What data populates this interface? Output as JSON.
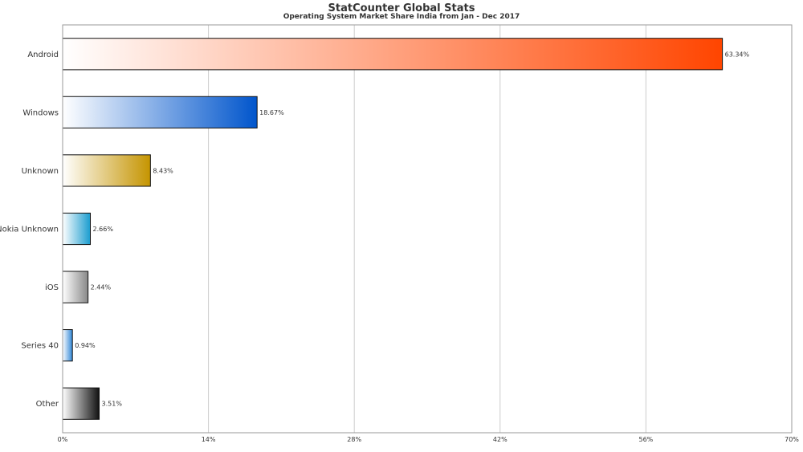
{
  "chart_data": {
    "type": "bar",
    "orientation": "horizontal",
    "title": "StatCounter Global Stats",
    "subtitle": "Operating System Market Share India from Jan - Dec 2017",
    "xlabel": "",
    "ylabel": "",
    "xlim": [
      0,
      70
    ],
    "x_ticks": [
      0,
      14,
      28,
      42,
      56,
      70
    ],
    "x_tick_labels": [
      "0%",
      "14%",
      "28%",
      "42%",
      "56%",
      "70%"
    ],
    "grid": true,
    "categories": [
      "Android",
      "Windows",
      "Unknown",
      "Nokia Unknown",
      "iOS",
      "Series 40",
      "Other"
    ],
    "values": [
      63.34,
      18.67,
      8.43,
      2.66,
      2.44,
      0.94,
      3.51
    ],
    "value_labels": [
      "63.34%",
      "18.67%",
      "8.43%",
      "2.66%",
      "2.44%",
      "0.94%",
      "3.51%"
    ],
    "bar_colors": [
      "#ff4500",
      "#0055cc",
      "#c59400",
      "#1a9ccf",
      "#888888",
      "#2f86d6",
      "#111111"
    ]
  }
}
